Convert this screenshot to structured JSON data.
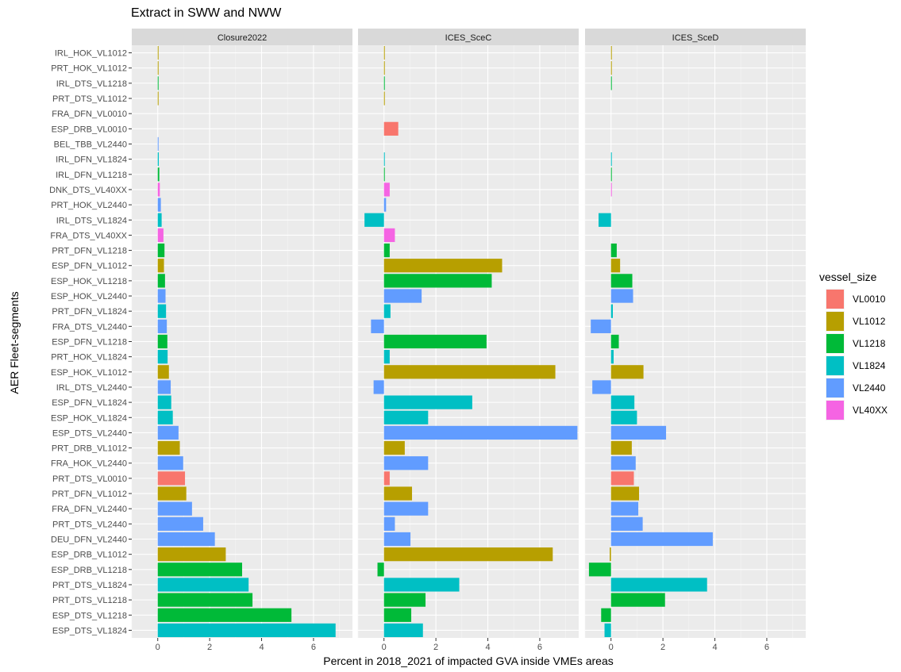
{
  "chart_data": {
    "type": "bar",
    "orientation": "horizontal",
    "title": "Extract in SWW and NWW",
    "xlabel": "Percent in 2018_2021 of impacted GVA inside VMEs areas",
    "ylabel": "AER Fleet-segments",
    "xlim": [
      -1,
      7.5
    ],
    "xticks": [
      0,
      2,
      4,
      6
    ],
    "grid": true,
    "legend": {
      "title": "vessel_size",
      "position": "right",
      "items": [
        {
          "name": "VL0010",
          "color": "#F8766D"
        },
        {
          "name": "VL1012",
          "color": "#B79F00"
        },
        {
          "name": "VL1218",
          "color": "#00BA38"
        },
        {
          "name": "VL1824",
          "color": "#00BFC4"
        },
        {
          "name": "VL2440",
          "color": "#619CFF"
        },
        {
          "name": "VL40XX",
          "color": "#F564E3"
        }
      ]
    },
    "categories": [
      "IRL_HOK_VL1012",
      "PRT_HOK_VL1012",
      "IRL_DTS_VL1218",
      "PRT_DTS_VL1012",
      "FRA_DFN_VL0010",
      "ESP_DRB_VL0010",
      "BEL_TBB_VL2440",
      "IRL_DFN_VL1824",
      "IRL_DFN_VL1218",
      "DNK_DTS_VL40XX",
      "PRT_HOK_VL2440",
      "IRL_DTS_VL1824",
      "FRA_DTS_VL40XX",
      "PRT_DFN_VL1218",
      "ESP_DFN_VL1012",
      "ESP_HOK_VL1218",
      "ESP_HOK_VL2440",
      "PRT_DFN_VL1824",
      "FRA_DTS_VL2440",
      "ESP_DFN_VL1218",
      "PRT_HOK_VL1824",
      "ESP_HOK_VL1012",
      "IRL_DTS_VL2440",
      "ESP_DFN_VL1824",
      "ESP_HOK_VL1824",
      "ESP_DTS_VL2440",
      "PRT_DRB_VL1012",
      "FRA_HOK_VL2440",
      "PRT_DTS_VL0010",
      "PRT_DFN_VL1012",
      "FRA_DFN_VL2440",
      "PRT_DTS_VL2440",
      "DEU_DFN_VL2440",
      "ESP_DRB_VL1012",
      "ESP_DRB_VL1218",
      "PRT_DTS_VL1824",
      "PRT_DTS_VL1218",
      "ESP_DTS_VL1218",
      "ESP_DTS_VL1824"
    ],
    "vessel_size": [
      "VL1012",
      "VL1012",
      "VL1218",
      "VL1012",
      "VL0010",
      "VL0010",
      "VL2440",
      "VL1824",
      "VL1218",
      "VL40XX",
      "VL2440",
      "VL1824",
      "VL40XX",
      "VL1218",
      "VL1012",
      "VL1218",
      "VL2440",
      "VL1824",
      "VL2440",
      "VL1218",
      "VL1824",
      "VL1012",
      "VL2440",
      "VL1824",
      "VL1824",
      "VL2440",
      "VL1012",
      "VL2440",
      "VL0010",
      "VL1012",
      "VL2440",
      "VL2440",
      "VL2440",
      "VL1012",
      "VL1218",
      "VL1824",
      "VL1218",
      "VL1218",
      "VL1824"
    ],
    "panels": [
      {
        "name": "Closure2022",
        "values": [
          0.02,
          0.01,
          0.01,
          0.01,
          0.0,
          0.0,
          0.03,
          0.04,
          0.06,
          0.08,
          0.12,
          0.15,
          0.22,
          0.26,
          0.24,
          0.28,
          0.3,
          0.32,
          0.35,
          0.37,
          0.38,
          0.43,
          0.5,
          0.52,
          0.58,
          0.8,
          0.85,
          0.98,
          1.05,
          1.1,
          1.32,
          1.75,
          2.2,
          2.62,
          3.25,
          3.5,
          3.65,
          5.15,
          6.85
        ]
      },
      {
        "name": "ICES_SceC",
        "values": [
          0.01,
          0.01,
          0.01,
          0.01,
          0.0,
          0.55,
          0.0,
          0.03,
          0.03,
          0.22,
          0.08,
          -0.75,
          0.42,
          0.22,
          4.55,
          4.15,
          1.45,
          0.25,
          -0.5,
          3.95,
          0.22,
          6.6,
          -0.4,
          3.4,
          1.7,
          7.45,
          0.8,
          1.7,
          0.22,
          1.08,
          1.7,
          0.42,
          1.02,
          6.5,
          -0.25,
          2.9,
          1.6,
          1.05,
          1.5
        ]
      },
      {
        "name": "ICES_SceD",
        "values": [
          0.01,
          0.01,
          0.01,
          0.0,
          0.0,
          0.0,
          0.0,
          0.01,
          0.01,
          0.03,
          0.0,
          -0.48,
          0.0,
          0.22,
          0.35,
          0.82,
          0.85,
          0.07,
          -0.78,
          0.3,
          0.1,
          1.25,
          -0.72,
          0.9,
          1.0,
          2.12,
          0.8,
          0.95,
          0.88,
          1.08,
          1.05,
          1.22,
          3.92,
          -0.05,
          -0.85,
          3.7,
          2.08,
          -0.38,
          -0.25
        ]
      }
    ]
  }
}
